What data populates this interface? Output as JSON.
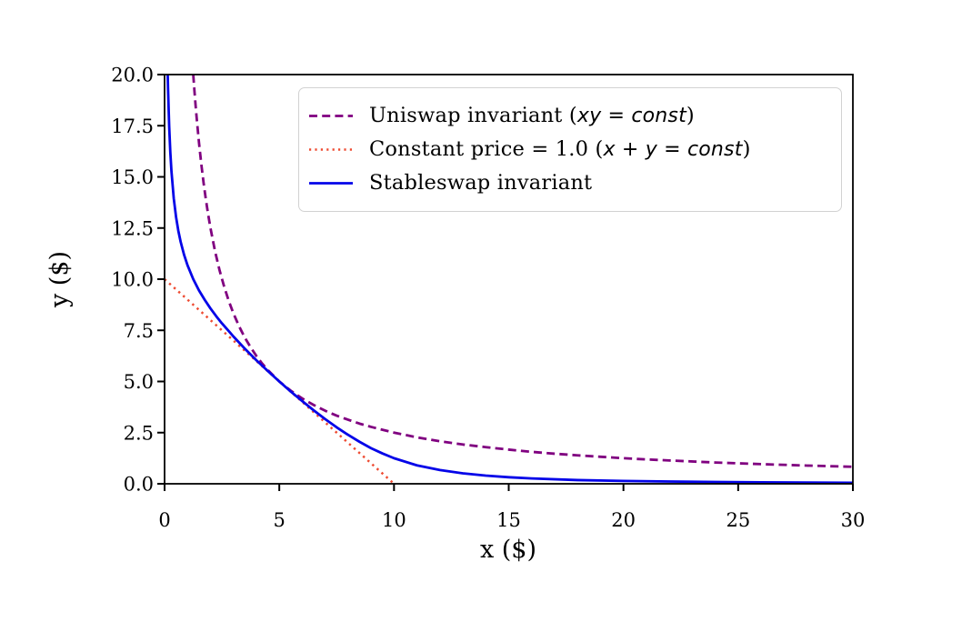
{
  "chart_data": {
    "type": "line",
    "title": "",
    "xlabel": "x ($)",
    "ylabel": "y ($)",
    "xlim": [
      0,
      30
    ],
    "ylim": [
      0,
      20
    ],
    "grid": false,
    "frame": "full-box",
    "axis_color": "#000000",
    "legend_position": "upper center inside plot",
    "x_ticks": [
      {
        "v": 0,
        "label": "0"
      },
      {
        "v": 5,
        "label": "5"
      },
      {
        "v": 10,
        "label": "10"
      },
      {
        "v": 15,
        "label": "15"
      },
      {
        "v": 20,
        "label": "20"
      },
      {
        "v": 25,
        "label": "25"
      },
      {
        "v": 30,
        "label": "30"
      }
    ],
    "y_ticks": [
      {
        "v": 0,
        "label": "0.0"
      },
      {
        "v": 2.5,
        "label": "2.5"
      },
      {
        "v": 5,
        "label": "5.0"
      },
      {
        "v": 7.5,
        "label": "7.5"
      },
      {
        "v": 10,
        "label": "10.0"
      },
      {
        "v": 12.5,
        "label": "12.5"
      },
      {
        "v": 15,
        "label": "15.0"
      },
      {
        "v": 17.5,
        "label": "17.5"
      },
      {
        "v": 20,
        "label": "20.0"
      }
    ],
    "series": [
      {
        "name": "Uniswap invariant (xy = const)",
        "color": "#800080",
        "linestyle": "dashed",
        "linewidth": 2.8,
        "points": [
          [
            1.25,
            20
          ],
          [
            1.3,
            19.23
          ],
          [
            1.35,
            18.52
          ],
          [
            1.4,
            17.86
          ],
          [
            1.5,
            16.67
          ],
          [
            1.6,
            15.63
          ],
          [
            1.7,
            14.71
          ],
          [
            1.8,
            13.89
          ],
          [
            1.9,
            13.16
          ],
          [
            2,
            12.5
          ],
          [
            2.2,
            11.36
          ],
          [
            2.4,
            10.42
          ],
          [
            2.6,
            9.62
          ],
          [
            2.8,
            8.93
          ],
          [
            3,
            8.33
          ],
          [
            3.25,
            7.69
          ],
          [
            3.5,
            7.14
          ],
          [
            3.75,
            6.67
          ],
          [
            4,
            6.25
          ],
          [
            4.25,
            5.88
          ],
          [
            4.5,
            5.56
          ],
          [
            5,
            5
          ],
          [
            5.5,
            4.55
          ],
          [
            6,
            4.17
          ],
          [
            6.5,
            3.85
          ],
          [
            7,
            3.57
          ],
          [
            7.5,
            3.33
          ],
          [
            8,
            3.13
          ],
          [
            8.5,
            2.94
          ],
          [
            9,
            2.78
          ],
          [
            10,
            2.5
          ],
          [
            11,
            2.27
          ],
          [
            12,
            2.08
          ],
          [
            13,
            1.92
          ],
          [
            14,
            1.79
          ],
          [
            15,
            1.67
          ],
          [
            16,
            1.56
          ],
          [
            17,
            1.47
          ],
          [
            18,
            1.39
          ],
          [
            19,
            1.32
          ],
          [
            20,
            1.25
          ],
          [
            21,
            1.19
          ],
          [
            22,
            1.14
          ],
          [
            24,
            1.04
          ],
          [
            26,
            0.96
          ],
          [
            28,
            0.89
          ],
          [
            30,
            0.83
          ]
        ]
      },
      {
        "name": "Constant price = 1.0 (x + y = const)",
        "color": "#ee4b32",
        "linestyle": "dotted",
        "linewidth": 2.5,
        "points": [
          [
            0,
            10
          ],
          [
            10,
            0
          ]
        ]
      },
      {
        "name": "Stableswap invariant",
        "color": "#0404e8",
        "linestyle": "solid",
        "linewidth": 2.8,
        "points": [
          [
            0.137,
            20
          ],
          [
            0.15,
            19.36
          ],
          [
            0.2,
            17.48
          ],
          [
            0.25,
            16.21
          ],
          [
            0.3,
            15.27
          ],
          [
            0.4,
            13.95
          ],
          [
            0.5,
            13.04
          ],
          [
            0.6,
            12.36
          ],
          [
            0.7,
            11.83
          ],
          [
            0.85,
            11.19
          ],
          [
            1,
            10.68
          ],
          [
            1.25,
            10
          ],
          [
            1.5,
            9.45
          ],
          [
            1.75,
            8.99
          ],
          [
            2,
            8.57
          ],
          [
            2.25,
            8.19
          ],
          [
            2.5,
            7.84
          ],
          [
            3,
            7.2
          ],
          [
            3.5,
            6.6
          ],
          [
            4,
            6.04
          ],
          [
            4.5,
            5.51
          ],
          [
            5,
            5
          ],
          [
            5.5,
            4.51
          ],
          [
            6,
            4.04
          ],
          [
            6.5,
            3.59
          ],
          [
            7,
            3.16
          ],
          [
            7.5,
            2.76
          ],
          [
            8,
            2.39
          ],
          [
            8.5,
            2.05
          ],
          [
            9,
            1.74
          ],
          [
            9.5,
            1.48
          ],
          [
            10,
            1.25
          ],
          [
            11,
            0.9
          ],
          [
            12,
            0.67
          ],
          [
            13,
            0.51
          ],
          [
            14,
            0.4
          ],
          [
            15,
            0.32
          ],
          [
            16,
            0.26
          ],
          [
            18,
            0.18
          ],
          [
            20,
            0.14
          ],
          [
            22,
            0.11
          ],
          [
            24,
            0.09
          ],
          [
            26,
            0.07
          ],
          [
            28,
            0.06
          ],
          [
            30,
            0.05
          ]
        ]
      }
    ]
  },
  "legend": {
    "border_color": "#d2d2d2",
    "items": [
      {
        "prefix": "Uniswap invariant (",
        "math": "xy = const",
        "suffix": ")",
        "color": "#800080",
        "style": "dashed"
      },
      {
        "prefix": "Constant price = 1.0 (",
        "math": "x + y = const",
        "suffix": ")",
        "color": "#ee4b32",
        "style": "dotted"
      },
      {
        "prefix": "Stableswap invariant",
        "math": "",
        "suffix": "",
        "color": "#0404e8",
        "style": "solid"
      }
    ]
  }
}
